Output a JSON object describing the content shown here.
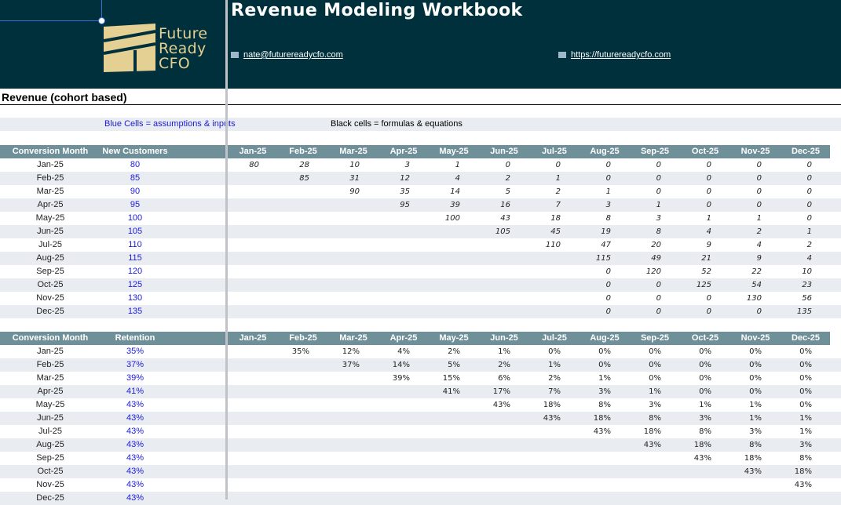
{
  "header": {
    "title": "Revenue Modeling Workbook",
    "logo_lines": [
      "Future",
      "Ready",
      "CFO"
    ],
    "email": "nate@futurereadycfo.com",
    "website": "https://futurereadycfo.com"
  },
  "section_title": "Revenue (cohort based)",
  "legend": {
    "blue": "Blue Cells = assumptions & inputs",
    "black": "Black cells = formulas & equations"
  },
  "months": [
    "Jan-25",
    "Feb-25",
    "Mar-25",
    "Apr-25",
    "May-25",
    "Jun-25",
    "Jul-25",
    "Aug-25",
    "Sep-25",
    "Oct-25",
    "Nov-25",
    "Dec-25"
  ],
  "cohort_table": {
    "col_a": "Conversion Month",
    "col_b": "New Customers",
    "rows": [
      {
        "month": "Jan-25",
        "input": "80",
        "vals": [
          "80",
          "28",
          "10",
          "3",
          "1",
          "0",
          "0",
          "0",
          "0",
          "0",
          "0",
          "0"
        ]
      },
      {
        "month": "Feb-25",
        "input": "85",
        "vals": [
          "",
          "85",
          "31",
          "12",
          "4",
          "2",
          "1",
          "0",
          "0",
          "0",
          "0",
          "0"
        ]
      },
      {
        "month": "Mar-25",
        "input": "90",
        "vals": [
          "",
          "",
          "90",
          "35",
          "14",
          "5",
          "2",
          "1",
          "0",
          "0",
          "0",
          "0"
        ]
      },
      {
        "month": "Apr-25",
        "input": "95",
        "vals": [
          "",
          "",
          "",
          "95",
          "39",
          "16",
          "7",
          "3",
          "1",
          "0",
          "0",
          "0"
        ]
      },
      {
        "month": "May-25",
        "input": "100",
        "vals": [
          "",
          "",
          "",
          "",
          "100",
          "43",
          "18",
          "8",
          "3",
          "1",
          "1",
          "0"
        ]
      },
      {
        "month": "Jun-25",
        "input": "105",
        "vals": [
          "",
          "",
          "",
          "",
          "",
          "105",
          "45",
          "19",
          "8",
          "4",
          "2",
          "1"
        ]
      },
      {
        "month": "Jul-25",
        "input": "110",
        "vals": [
          "",
          "",
          "",
          "",
          "",
          "",
          "110",
          "47",
          "20",
          "9",
          "4",
          "2"
        ]
      },
      {
        "month": "Aug-25",
        "input": "115",
        "vals": [
          "",
          "",
          "",
          "",
          "",
          "",
          "",
          "115",
          "49",
          "21",
          "9",
          "4"
        ]
      },
      {
        "month": "Sep-25",
        "input": "120",
        "vals": [
          "",
          "",
          "",
          "",
          "",
          "",
          "",
          "0",
          "120",
          "52",
          "22",
          "10"
        ]
      },
      {
        "month": "Oct-25",
        "input": "125",
        "vals": [
          "",
          "",
          "",
          "",
          "",
          "",
          "",
          "0",
          "0",
          "125",
          "54",
          "23"
        ]
      },
      {
        "month": "Nov-25",
        "input": "130",
        "vals": [
          "",
          "",
          "",
          "",
          "",
          "",
          "",
          "0",
          "0",
          "0",
          "130",
          "56"
        ]
      },
      {
        "month": "Dec-25",
        "input": "135",
        "vals": [
          "",
          "",
          "",
          "",
          "",
          "",
          "",
          "0",
          "0",
          "0",
          "0",
          "135"
        ]
      }
    ]
  },
  "retention_table": {
    "col_a": "Conversion Month",
    "col_b": "Retention",
    "rows": [
      {
        "month": "Jan-25",
        "input": "35%",
        "vals": [
          "",
          "35%",
          "12%",
          "4%",
          "2%",
          "1%",
          "0%",
          "0%",
          "0%",
          "0%",
          "0%",
          "0%"
        ]
      },
      {
        "month": "Feb-25",
        "input": "37%",
        "vals": [
          "",
          "",
          "37%",
          "14%",
          "5%",
          "2%",
          "1%",
          "0%",
          "0%",
          "0%",
          "0%",
          "0%"
        ]
      },
      {
        "month": "Mar-25",
        "input": "39%",
        "vals": [
          "",
          "",
          "",
          "39%",
          "15%",
          "6%",
          "2%",
          "1%",
          "0%",
          "0%",
          "0%",
          "0%"
        ]
      },
      {
        "month": "Apr-25",
        "input": "41%",
        "vals": [
          "",
          "",
          "",
          "",
          "41%",
          "17%",
          "7%",
          "3%",
          "1%",
          "0%",
          "0%",
          "0%"
        ]
      },
      {
        "month": "May-25",
        "input": "43%",
        "vals": [
          "",
          "",
          "",
          "",
          "",
          "43%",
          "18%",
          "8%",
          "3%",
          "1%",
          "1%",
          "0%"
        ]
      },
      {
        "month": "Jun-25",
        "input": "43%",
        "vals": [
          "",
          "",
          "",
          "",
          "",
          "",
          "43%",
          "18%",
          "8%",
          "3%",
          "1%",
          "1%"
        ]
      },
      {
        "month": "Jul-25",
        "input": "43%",
        "vals": [
          "",
          "",
          "",
          "",
          "",
          "",
          "",
          "43%",
          "18%",
          "8%",
          "3%",
          "1%"
        ]
      },
      {
        "month": "Aug-25",
        "input": "43%",
        "vals": [
          "",
          "",
          "",
          "",
          "",
          "",
          "",
          "",
          "43%",
          "18%",
          "8%",
          "3%"
        ]
      },
      {
        "month": "Sep-25",
        "input": "43%",
        "vals": [
          "",
          "",
          "",
          "",
          "",
          "",
          "",
          "",
          "",
          "43%",
          "18%",
          "8%"
        ]
      },
      {
        "month": "Oct-25",
        "input": "43%",
        "vals": [
          "",
          "",
          "",
          "",
          "",
          "",
          "",
          "",
          "",
          "",
          "43%",
          "18%"
        ]
      },
      {
        "month": "Nov-25",
        "input": "43%",
        "vals": [
          "",
          "",
          "",
          "",
          "",
          "",
          "",
          "",
          "",
          "",
          "",
          "43%"
        ]
      },
      {
        "month": "Dec-25",
        "input": "43%",
        "vals": [
          "",
          "",
          "",
          "",
          "",
          "",
          "",
          "",
          "",
          "",
          "",
          ""
        ]
      }
    ]
  },
  "colors": {
    "banner": "#00303b",
    "header_row": "#6f8f99",
    "band": "#e9edf1",
    "input_blue": "#1a1adb",
    "logo_gold": "#e3d092"
  }
}
